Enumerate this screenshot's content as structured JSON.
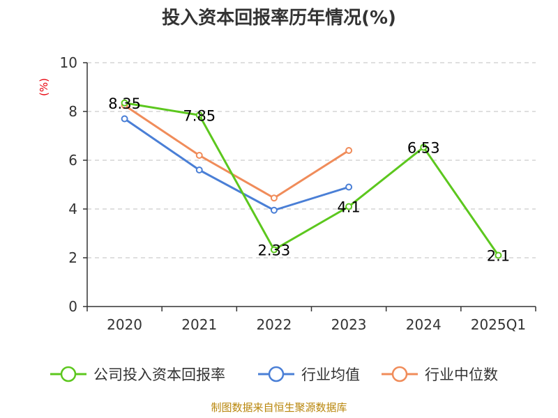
{
  "chart_data": {
    "type": "line",
    "title": "投入资本回报率历年情况(%)",
    "ylabel": "(%)",
    "ylim": [
      0,
      10
    ],
    "yticks": [
      0,
      2,
      4,
      6,
      8,
      10
    ],
    "categories": [
      "2020",
      "2021",
      "2022",
      "2023",
      "2024",
      "2025Q1"
    ],
    "grid": true,
    "legend_position": "bottom",
    "series": [
      {
        "name": "公司投入资本回报率",
        "color": "#5cc71e",
        "values": [
          8.35,
          7.85,
          2.33,
          4.1,
          6.53,
          2.1
        ],
        "labels": [
          "8.35",
          "7.85",
          "2.33",
          "4.1",
          "6.53",
          "2.1"
        ]
      },
      {
        "name": "行业均值",
        "color": "#4a7fd6",
        "values": [
          7.7,
          5.6,
          3.95,
          4.9,
          null,
          null
        ],
        "labels": null
      },
      {
        "name": "行业中位数",
        "color": "#f08c5a",
        "values": [
          8.25,
          6.2,
          4.45,
          6.4,
          null,
          null
        ],
        "labels": null
      }
    ]
  },
  "footer": {
    "source": "制图数据来自恒生聚源数据库"
  }
}
